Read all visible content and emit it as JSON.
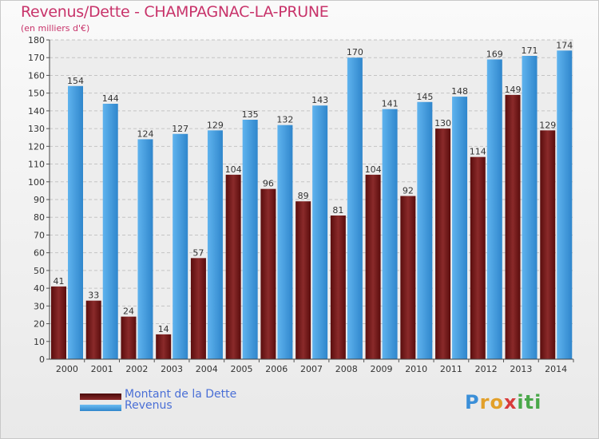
{
  "chart_data": {
    "type": "bar",
    "title": "Revenus/Dette - CHAMPAGNAC-LA-PRUNE",
    "subtitle": "(en milliers d'€)",
    "categories": [
      "2000",
      "2001",
      "2002",
      "2003",
      "2004",
      "2005",
      "2006",
      "2007",
      "2008",
      "2009",
      "2010",
      "2011",
      "2012",
      "2013",
      "2014"
    ],
    "series": [
      {
        "name": "Montant de la Dette",
        "color": "#7a1e1e",
        "values": [
          41,
          33,
          24,
          14,
          57,
          104,
          96,
          89,
          81,
          104,
          92,
          130,
          114,
          149,
          129
        ]
      },
      {
        "name": "Revenus",
        "color": "#4fa3e0",
        "values": [
          154,
          144,
          124,
          127,
          129,
          135,
          132,
          143,
          170,
          141,
          145,
          148,
          169,
          171,
          174
        ]
      }
    ],
    "ylim": [
      0,
      180
    ],
    "yticks": [
      0,
      10,
      20,
      30,
      40,
      50,
      60,
      70,
      80,
      90,
      100,
      110,
      120,
      130,
      140,
      150,
      160,
      170,
      180
    ],
    "grid": true,
    "legend_position": "bottom-left"
  },
  "logo": {
    "letters": [
      "P",
      "r",
      "o",
      "x",
      "i",
      "t",
      "i"
    ],
    "colors": [
      "#3b8fd8",
      "#e2a02a",
      "#e2a02a",
      "#d83b3b",
      "#4aa84a",
      "#4aa84a",
      "#4aa84a"
    ]
  }
}
